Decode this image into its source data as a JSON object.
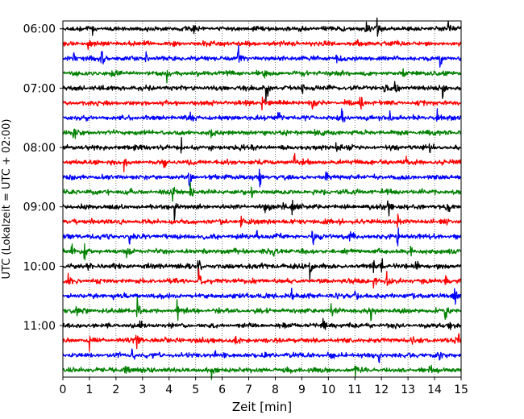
{
  "chart_data": {
    "type": "line",
    "title": "",
    "xlabel": "Zeit  [min]",
    "ylabel": "UTC (Lokalzeit = UTC + 02:00)",
    "xlim": [
      0,
      15
    ],
    "x_ticks": [
      "0",
      "1",
      "2",
      "3",
      "4",
      "5",
      "6",
      "7",
      "8",
      "9",
      "10",
      "11",
      "12",
      "13",
      "14",
      "15"
    ],
    "y_ticks": [
      "06:00",
      "07:00",
      "08:00",
      "09:00",
      "10:00",
      "11:00"
    ],
    "grid": "vertical dotted",
    "legend": "none",
    "line_colors": [
      "#000000",
      "#ff0000",
      "#0000ff",
      "#008000"
    ],
    "rows": [
      {
        "start": "06:00",
        "color": "#000000",
        "events": [
          [
            1.1,
            0.7
          ],
          [
            11.4,
            0.9
          ],
          [
            11.8,
            1.0
          ],
          [
            14.5,
            1.0
          ],
          [
            4.9,
            0.4
          ]
        ]
      },
      {
        "start": "06:15",
        "color": "#ff0000",
        "events": [
          [
            0.95,
            0.9
          ],
          [
            5.3,
            0.4
          ],
          [
            11.1,
            0.4
          ]
        ]
      },
      {
        "start": "06:30",
        "color": "#0000ff",
        "events": [
          [
            1.45,
            0.8
          ],
          [
            3.1,
            0.5
          ],
          [
            6.6,
            0.8
          ],
          [
            10.3,
            0.5
          ],
          [
            14.2,
            0.6
          ],
          [
            0.4,
            0.3
          ]
        ]
      },
      {
        "start": "06:45",
        "color": "#008000",
        "events": [
          [
            1.85,
            0.5
          ],
          [
            3.9,
            0.9
          ],
          [
            7.6,
            0.4
          ],
          [
            12.8,
            0.4
          ]
        ]
      },
      {
        "start": "07:00",
        "color": "#000000",
        "events": [
          [
            7.65,
            1.0
          ],
          [
            9.0,
            0.4
          ],
          [
            12.1,
            0.8
          ],
          [
            12.5,
            0.6
          ],
          [
            14.3,
            0.8
          ]
        ]
      },
      {
        "start": "07:15",
        "color": "#ff0000",
        "events": [
          [
            11.2,
            1.0
          ],
          [
            7.5,
            0.5
          ],
          [
            9.4,
            0.3
          ]
        ]
      },
      {
        "start": "07:30",
        "color": "#0000ff",
        "events": [
          [
            8.1,
            0.6
          ],
          [
            10.5,
            0.7
          ],
          [
            12.3,
            0.6
          ],
          [
            14.1,
            0.4
          ],
          [
            4.8,
            0.3
          ]
        ]
      },
      {
        "start": "07:45",
        "color": "#008000",
        "events": [
          [
            0.4,
            0.5
          ],
          [
            5.6,
            0.4
          ],
          [
            9.5,
            0.4
          ]
        ]
      },
      {
        "start": "08:00",
        "color": "#000000",
        "events": [
          [
            4.45,
            0.6
          ],
          [
            10.3,
            1.0
          ],
          [
            13.8,
            0.7
          ],
          [
            7.1,
            0.3
          ]
        ]
      },
      {
        "start": "08:15",
        "color": "#ff0000",
        "events": [
          [
            2.3,
            0.5
          ],
          [
            3.8,
            0.6
          ],
          [
            8.7,
            1.0
          ],
          [
            11.0,
            0.6
          ],
          [
            12.9,
            0.5
          ]
        ]
      },
      {
        "start": "08:30",
        "color": "#0000ff",
        "events": [
          [
            4.75,
            0.9
          ],
          [
            7.4,
            0.6
          ],
          [
            9.9,
            0.6
          ],
          [
            0.2,
            0.3
          ]
        ]
      },
      {
        "start": "08:45",
        "color": "#008000",
        "events": [
          [
            2.5,
            0.6
          ],
          [
            4.1,
            0.7
          ],
          [
            4.8,
            0.6
          ],
          [
            7.1,
            0.5
          ],
          [
            12.2,
            0.4
          ]
        ]
      },
      {
        "start": "09:00",
        "color": "#000000",
        "events": [
          [
            4.2,
            1.0
          ],
          [
            7.6,
            0.5
          ],
          [
            8.3,
            0.6
          ],
          [
            8.6,
            1.0
          ],
          [
            12.25,
            1.0
          ],
          [
            14.5,
            0.4
          ]
        ]
      },
      {
        "start": "09:15",
        "color": "#ff0000",
        "events": [
          [
            1.1,
            0.4
          ],
          [
            6.7,
            0.5
          ],
          [
            10.4,
            0.3
          ],
          [
            12.6,
            0.4
          ]
        ]
      },
      {
        "start": "09:30",
        "color": "#0000ff",
        "events": [
          [
            2.5,
            0.8
          ],
          [
            7.3,
            0.5
          ],
          [
            9.4,
            0.9
          ],
          [
            12.6,
            1.0
          ],
          [
            10.8,
            0.4
          ]
        ]
      },
      {
        "start": "09:45",
        "color": "#008000",
        "events": [
          [
            0.3,
            0.7
          ],
          [
            0.8,
            0.6
          ],
          [
            2.4,
            0.5
          ],
          [
            7.9,
            0.5
          ],
          [
            13.1,
            0.4
          ]
        ]
      },
      {
        "start": "10:00",
        "color": "#000000",
        "events": [
          [
            0.9,
            0.5
          ],
          [
            5.1,
            0.7
          ],
          [
            9.3,
            1.0
          ],
          [
            11.7,
            0.7
          ],
          [
            12.0,
            0.6
          ],
          [
            13.3,
            1.0
          ]
        ]
      },
      {
        "start": "10:15",
        "color": "#ff0000",
        "events": [
          [
            0.2,
            0.6
          ],
          [
            5.1,
            0.9
          ],
          [
            11.7,
            0.8
          ],
          [
            12.2,
            0.6
          ],
          [
            14.4,
            0.5
          ]
        ]
      },
      {
        "start": "10:30",
        "color": "#0000ff",
        "events": [
          [
            1.9,
            0.4
          ],
          [
            8.6,
            0.8
          ],
          [
            11.0,
            0.4
          ],
          [
            14.75,
            0.8
          ]
        ]
      },
      {
        "start": "10:45",
        "color": "#008000",
        "events": [
          [
            0.5,
            0.5
          ],
          [
            2.8,
            1.0
          ],
          [
            4.3,
            0.6
          ],
          [
            10.1,
            0.7
          ],
          [
            11.6,
            0.9
          ],
          [
            14.4,
            0.9
          ]
        ]
      },
      {
        "start": "11:00",
        "color": "#000000",
        "events": [
          [
            2.9,
            0.6
          ],
          [
            9.8,
            0.5
          ],
          [
            14.5,
            0.7
          ]
        ]
      },
      {
        "start": "11:15",
        "color": "#ff0000",
        "events": [
          [
            1.0,
            0.5
          ],
          [
            2.75,
            0.9
          ],
          [
            6.5,
            0.3
          ],
          [
            13.1,
            0.3
          ],
          [
            14.85,
            0.9
          ]
        ]
      },
      {
        "start": "11:30",
        "color": "#0000ff",
        "events": [
          [
            2.6,
            0.5
          ],
          [
            5.7,
            0.4
          ],
          [
            11.9,
            0.6
          ],
          [
            14.2,
            0.4
          ]
        ]
      },
      {
        "start": "11:45",
        "color": "#008000",
        "events": [
          [
            2.3,
            0.8
          ],
          [
            5.6,
            0.4
          ],
          [
            11.0,
            0.4
          ],
          [
            13.8,
            0.4
          ]
        ]
      }
    ]
  }
}
